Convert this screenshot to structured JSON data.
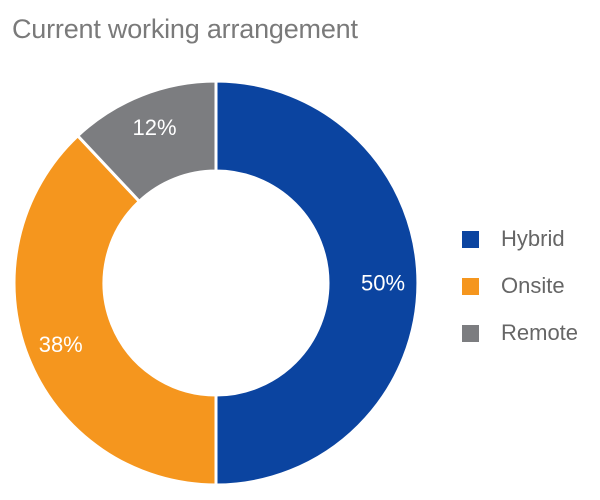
{
  "chart_data": {
    "type": "pie",
    "title": "Current working arrangement",
    "categories": [
      "Hybrid",
      "Onsite",
      "Remote"
    ],
    "values": [
      50,
      38,
      12
    ],
    "value_labels": [
      "50%",
      "38%",
      "12%"
    ],
    "colors": [
      "#0b44a0",
      "#f5961e",
      "#7c7d80"
    ],
    "donut": true,
    "legend_position": "right"
  }
}
